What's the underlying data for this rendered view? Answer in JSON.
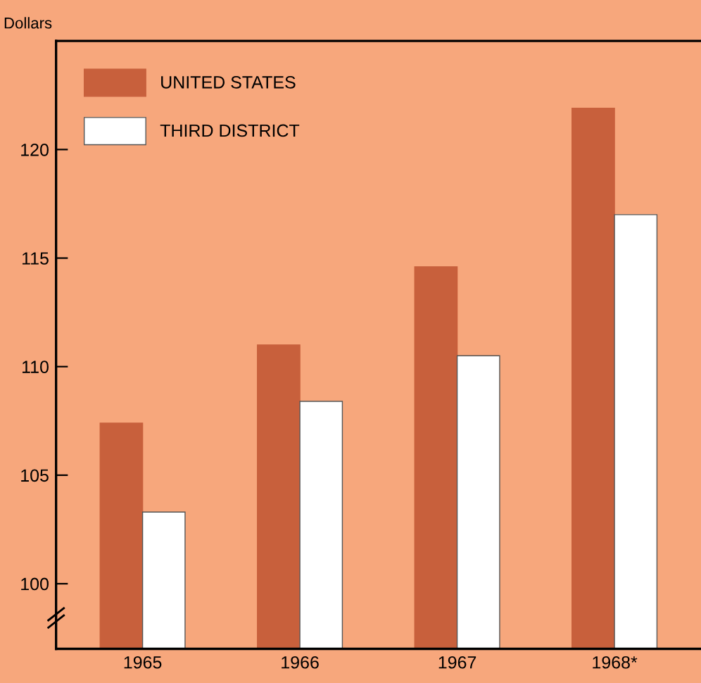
{
  "chart_data": {
    "type": "bar",
    "ylabel": "Dollars",
    "categories": [
      "1965",
      "1966",
      "1967",
      "1968*"
    ],
    "series": [
      {
        "name": "UNITED STATES",
        "color": "#c8603c",
        "values": [
          107.4,
          111.0,
          114.6,
          121.9
        ]
      },
      {
        "name": "THIRD DISTRICT",
        "color": "#ffffff",
        "values": [
          103.3,
          108.4,
          110.5,
          117.0
        ]
      }
    ],
    "ylim": [
      97,
      125
    ],
    "yticks": [
      100,
      105,
      110,
      115,
      120
    ],
    "grid": false,
    "legend": "top left"
  }
}
